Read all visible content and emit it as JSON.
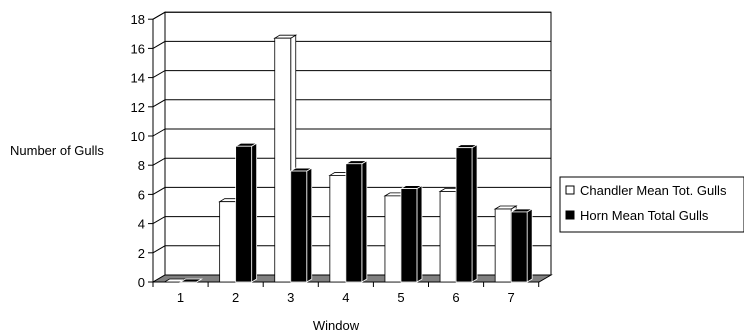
{
  "chart_data": {
    "type": "bar",
    "subtype": "3d-clustered-column",
    "title": "",
    "xlabel": "Window",
    "ylabel": "Number of Gulls",
    "categories": [
      "1",
      "2",
      "3",
      "4",
      "5",
      "6",
      "7"
    ],
    "ylim": [
      0,
      18
    ],
    "yticks": [
      "0",
      "2",
      "4",
      "6",
      "8",
      "10",
      "12",
      "14",
      "16",
      "18"
    ],
    "grid": true,
    "legend_position": "right",
    "series": [
      {
        "name": "Chandler Mean Tot. Gulls",
        "color": "#ffffff",
        "values": [
          0,
          5.5,
          16.7,
          7.3,
          5.9,
          6.2,
          5.0
        ]
      },
      {
        "name": "Horn Mean Total Gulls",
        "color": "#000000",
        "values": [
          0,
          9.3,
          7.6,
          8.1,
          6.4,
          9.2,
          4.8
        ]
      }
    ]
  }
}
